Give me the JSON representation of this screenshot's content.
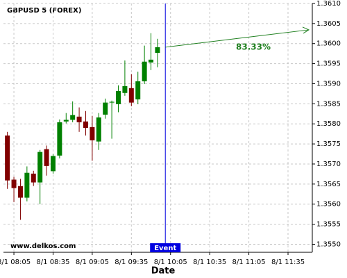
{
  "chart_data": {
    "type": "candlestick",
    "title": "GBPUSD 5 (FOREX)",
    "watermark": "www.delkos.com",
    "x_label": "Date",
    "x": [
      480,
      485,
      490,
      495,
      500,
      505,
      510,
      515,
      520,
      525,
      530,
      535,
      540,
      545,
      550,
      555,
      560,
      565,
      570,
      575,
      580,
      585,
      590,
      595
    ],
    "open": [
      1.35771,
      1.35661,
      1.35645,
      1.35616,
      1.35676,
      1.35654,
      1.35737,
      1.35682,
      1.35721,
      1.35806,
      1.3581,
      1.35818,
      1.35806,
      1.35792,
      1.35756,
      1.35823,
      1.35853,
      1.35849,
      1.35877,
      1.35889,
      1.35861,
      1.35906,
      1.35953,
      1.35977
    ],
    "high": [
      1.3578,
      1.35668,
      1.35663,
      1.35694,
      1.35683,
      1.35735,
      1.35746,
      1.35725,
      1.35811,
      1.35827,
      1.35856,
      1.35841,
      1.35832,
      1.3582,
      1.35827,
      1.35863,
      1.35858,
      1.35896,
      1.35958,
      1.35924,
      1.3593,
      1.35995,
      1.36026,
      1.36012
    ],
    "low": [
      1.35638,
      1.35605,
      1.35561,
      1.35607,
      1.35645,
      1.356,
      1.35671,
      1.35676,
      1.35714,
      1.35801,
      1.35804,
      1.3578,
      1.35771,
      1.35708,
      1.35735,
      1.35813,
      1.35763,
      1.35829,
      1.3587,
      1.35844,
      1.35849,
      1.35899,
      1.35934,
      1.35941
    ],
    "close": [
      1.35659,
      1.3564,
      1.35616,
      1.35678,
      1.35654,
      1.3573,
      1.35695,
      1.3572,
      1.35804,
      1.3581,
      1.35822,
      1.35804,
      1.3579,
      1.35759,
      1.35816,
      1.35853,
      1.35855,
      1.35882,
      1.35894,
      1.35853,
      1.35906,
      1.35955,
      1.3596,
      1.35991
    ],
    "up_color": "#008000",
    "down_color": "#800000",
    "xlim": [
      477,
      713.6
    ],
    "ylim": [
      1.3548,
      1.361
    ],
    "xticks": [
      {
        "value": 485,
        "label": "8/1 08:05"
      },
      {
        "value": 515,
        "label": "8/1 08:35"
      },
      {
        "value": 545,
        "label": "8/1 09:05"
      },
      {
        "value": 575,
        "label": "8/1 09:35"
      },
      {
        "value": 605,
        "label": "8/1 10:05"
      },
      {
        "value": 635,
        "label": "8/1 10:35"
      },
      {
        "value": 665,
        "label": "8/1 11:05"
      },
      {
        "value": 695,
        "label": "8/1 11:35"
      }
    ],
    "yticks": [
      {
        "value": 1.355,
        "label": "1.3550"
      },
      1.3555,
      {
        "value": 1.356,
        "label": "1.3560"
      },
      1.3565,
      {
        "value": 1.357,
        "label": "1.3570"
      },
      1.3575,
      {
        "value": 1.358,
        "label": "1.3580"
      },
      1.3585,
      {
        "value": 1.359,
        "label": "1.3590"
      },
      1.3595,
      {
        "value": 1.36,
        "label": "1.3600"
      },
      1.3605,
      {
        "value": 1.361,
        "label": "1.3610"
      }
    ],
    "grid": true,
    "event": {
      "label": "Event",
      "x": 601,
      "color": "#0000e0"
    },
    "prediction": {
      "label": "83.33%",
      "color": "#208020"
    }
  }
}
